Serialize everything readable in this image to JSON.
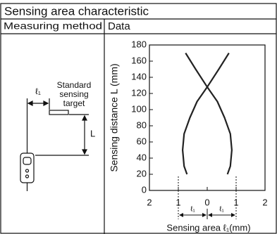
{
  "title": "Sensing area characteristic",
  "table": {
    "headers": [
      "Measuring method",
      "Data"
    ]
  },
  "diagram": {
    "target_label": [
      "Standard",
      "sensing",
      "target"
    ],
    "width_label": "ℓ₁",
    "distance_label": "L"
  },
  "chart_data": {
    "type": "line",
    "ylabel": "Sensing distance L (mm)",
    "xlabel": "Sensing area ℓ₁(mm)",
    "annotations": [
      "ℓ₁",
      "ℓ₁"
    ],
    "series": [
      {
        "color": "#222222",
        "x": [
          -0.7,
          -0.8,
          -0.85,
          -0.8,
          -0.6,
          -0.35,
          0,
          0.4,
          0.75
        ],
        "values": [
          20,
          30,
          50,
          70,
          90,
          110,
          128,
          150,
          170
        ]
      },
      {
        "color": "#222222",
        "x": [
          0.7,
          0.8,
          0.85,
          0.8,
          0.6,
          0.35,
          0,
          -0.4,
          -0.75
        ],
        "values": [
          20,
          30,
          50,
          70,
          90,
          110,
          128,
          150,
          170
        ]
      }
    ],
    "xlim": [
      -2,
      2
    ],
    "xticks": [
      {
        "value": -2,
        "label": "2"
      },
      {
        "value": -1,
        "label": "1"
      },
      0,
      1,
      2
    ],
    "ylim": [
      0,
      180
    ],
    "yticks": [
      0,
      20,
      40,
      60,
      80,
      100,
      120,
      140,
      160,
      180
    ],
    "grid": false
  }
}
